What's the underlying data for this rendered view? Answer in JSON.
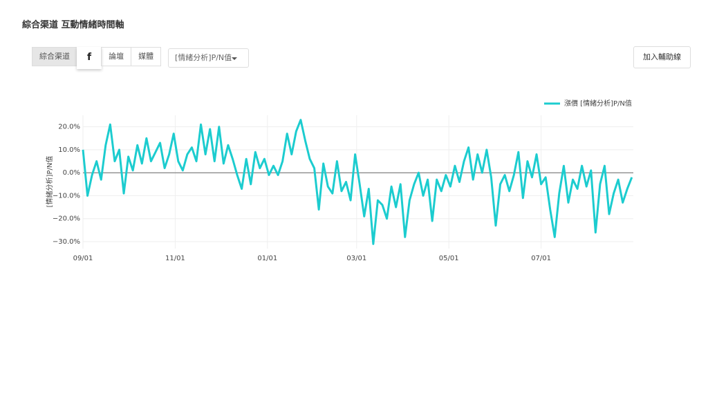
{
  "header": {
    "title": "綜合渠道 互動情緒時間軸"
  },
  "tabs": [
    "綜合渠道",
    "f",
    "論壇",
    "媒體"
  ],
  "dropdown": "[情緒分析]P/N值",
  "button": "加入輔助線",
  "chart_data": {
    "type": "line",
    "y_label": "[情緒分析]P/N值",
    "x": [
      0,
      3,
      6,
      9,
      12,
      15,
      18,
      21,
      24,
      27,
      30,
      33,
      36,
      39,
      42,
      45,
      48,
      51,
      54,
      57,
      60,
      63,
      66,
      69,
      72,
      75,
      78,
      81,
      84,
      87,
      90,
      93,
      96,
      99,
      102,
      105,
      108,
      111,
      114,
      117,
      120,
      123,
      126,
      129,
      132,
      135,
      138,
      141,
      144,
      147,
      150,
      153,
      156,
      159,
      162,
      165,
      168,
      171,
      174,
      177,
      180,
      183,
      186,
      189,
      192,
      195,
      198,
      201,
      204,
      207,
      210,
      213,
      216,
      219,
      222,
      225,
      228,
      231,
      234,
      237,
      240,
      243,
      246,
      249,
      252,
      255,
      258,
      261,
      264,
      267,
      270,
      273,
      276,
      279,
      282,
      285,
      288,
      291,
      294,
      297,
      300,
      303,
      306,
      309,
      312,
      315,
      318,
      321,
      324,
      327,
      330,
      333,
      336,
      339,
      342,
      345,
      348,
      351,
      354,
      357,
      360,
      363
    ],
    "series": [
      {
        "name": "漲價 [情緒分析]P/N值",
        "color": "#1ccccf",
        "values": [
          10,
          -10,
          -1,
          5,
          -3,
          12,
          21,
          5,
          10,
          -9,
          7,
          1,
          12,
          4,
          15,
          5,
          9,
          13,
          2,
          8,
          17,
          5,
          1,
          8,
          11,
          5,
          21,
          8,
          19,
          5,
          20,
          4,
          12,
          6,
          -1,
          -7,
          6,
          -5,
          9,
          2,
          6,
          -1,
          3,
          -1,
          5,
          17,
          8,
          18,
          23,
          14,
          6,
          2,
          -16,
          4,
          -6,
          -9,
          5,
          -8,
          -4,
          -12,
          8,
          -5,
          -19,
          -7,
          -31,
          -12,
          -14,
          -20,
          -6,
          -15,
          -5,
          -28,
          -12,
          -5,
          0,
          -10,
          -3,
          -21,
          -3,
          -8,
          -1,
          -6,
          3,
          -4,
          5,
          11,
          -3,
          8,
          0,
          10,
          -2,
          -23,
          -5,
          -1,
          -8,
          -1,
          9,
          -11,
          5,
          -2,
          8,
          -5,
          -2,
          -16,
          -28,
          -9,
          3,
          -13,
          -3,
          -7,
          3,
          -6,
          1,
          -26,
          -5,
          3,
          -18,
          -9,
          -3,
          -13,
          -7,
          -2
        ]
      }
    ],
    "xlim": [
      0,
      364
    ],
    "xticks": [
      {
        "value": 0,
        "label": "09/01"
      },
      {
        "value": 61,
        "label": "11/01"
      },
      {
        "value": 122,
        "label": "01/01"
      },
      {
        "value": 181,
        "label": "03/01"
      },
      {
        "value": 242,
        "label": "05/01"
      },
      {
        "value": 303,
        "label": "07/01"
      }
    ],
    "ylim": [
      -33,
      25
    ],
    "yticks": [
      {
        "value": -30,
        "label": "−30.0%"
      },
      {
        "value": -20,
        "label": "−20.0%"
      },
      {
        "value": -10,
        "label": "−10.0%"
      },
      {
        "value": 0,
        "label": "0.0%"
      },
      {
        "value": 10,
        "label": "10.0%"
      },
      {
        "value": 20,
        "label": "20.0%"
      }
    ],
    "grid": true,
    "legend": "top-right"
  }
}
